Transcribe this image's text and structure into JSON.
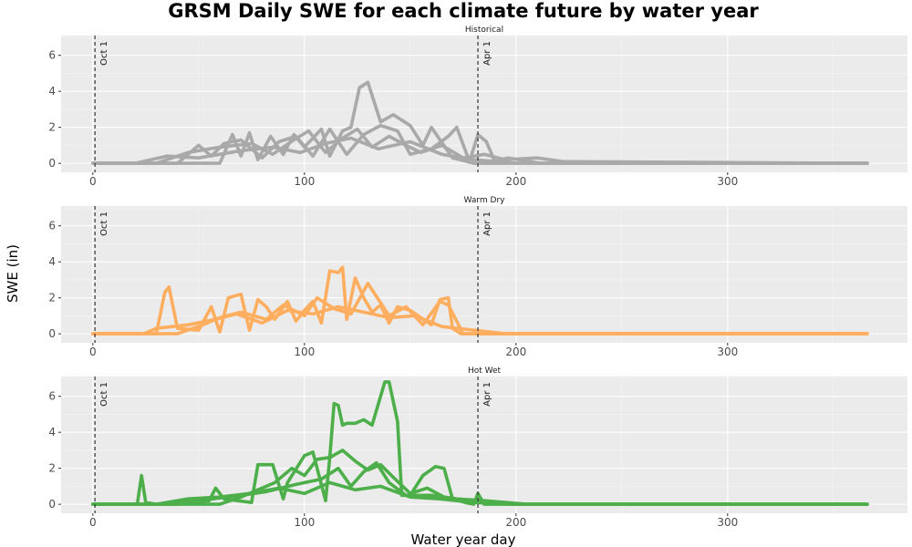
{
  "chart_data": {
    "type": "line",
    "title": "GRSM Daily SWE for each climate future by water year",
    "xlabel": "Water year day",
    "ylabel": "SWE (in)",
    "xlim": [
      -15,
      385
    ],
    "ylim": [
      -0.5,
      7.1
    ],
    "x_ticks": [
      0,
      100,
      200,
      300
    ],
    "y_ticks": [
      0,
      2,
      4,
      6
    ],
    "grid": true,
    "reference_lines": [
      {
        "x": 1,
        "label": "Oct 1",
        "style": "dashed"
      },
      {
        "x": 182,
        "label": "Apr 1",
        "style": "dashed"
      }
    ],
    "panels": [
      {
        "label": "Historical",
        "color": "#A9A9A9",
        "series": [
          {
            "x": [
              0,
              60,
              66,
              70,
              74,
              78,
              84,
              90,
              95,
              100,
              108,
              112,
              118,
              122,
              126,
              130,
              136,
              142,
              150,
              156,
              160,
              170,
              180,
              200,
              220,
              366
            ],
            "values": [
              0,
              0,
              1.6,
              0.4,
              1.7,
              0.2,
              1.5,
              0.5,
              1.6,
              0.9,
              1.9,
              0.4,
              1.8,
              2.0,
              4.2,
              4.5,
              2.3,
              2.7,
              2.1,
              1.0,
              2.0,
              0.3,
              0,
              0,
              0,
              0
            ]
          },
          {
            "x": [
              0,
              40,
              50,
              56,
              62,
              70,
              80,
              88,
              96,
              104,
              112,
              120,
              128,
              136,
              144,
              150,
              160,
              168,
              172,
              178,
              182,
              186,
              190,
              196,
              212,
              366
            ],
            "values": [
              0,
              0,
              1.0,
              0.4,
              1.1,
              1.3,
              0.3,
              1.2,
              1.5,
              0.4,
              1.9,
              0.5,
              1.6,
              2.1,
              1.8,
              0.5,
              0.8,
              1.5,
              2.0,
              0.1,
              1.6,
              1.2,
              0.1,
              0.3,
              0,
              0
            ]
          },
          {
            "x": [
              0,
              30,
              45,
              60,
              75,
              85,
              95,
              102,
              110,
              118,
              125,
              132,
              140,
              148,
              155,
              165,
              175,
              185,
              195,
              210,
              222,
              366
            ],
            "values": [
              0,
              0,
              0.6,
              0.9,
              1.1,
              0.5,
              1.3,
              1.8,
              0.6,
              1.4,
              1.9,
              0.9,
              1.5,
              1.0,
              0.6,
              1.0,
              0.3,
              0.5,
              0.2,
              0.3,
              0.1,
              0
            ]
          },
          {
            "x": [
              0,
              20,
              35,
              50,
              70,
              85,
              98,
              110,
              122,
              135,
              150,
              165,
              180,
              200,
              366
            ],
            "values": [
              0,
              0,
              0.4,
              0.3,
              0.7,
              0.9,
              0.6,
              1.1,
              1.4,
              0.8,
              1.2,
              0.5,
              0.2,
              0,
              0
            ]
          }
        ]
      },
      {
        "label": "Warm Dry",
        "color": "#FFAE5F",
        "series": [
          {
            "x": [
              0,
              30,
              34,
              36,
              40,
              50,
              56,
              60,
              64,
              70,
              74,
              78,
              82,
              86,
              92,
              96,
              100,
              104,
              108,
              112,
              116,
              118,
              120,
              124,
              128,
              132,
              136,
              140,
              144,
              150,
              160,
              164,
              168,
              170,
              174,
              182,
              200,
              366
            ],
            "values": [
              0,
              0,
              2.3,
              2.6,
              0.3,
              0.2,
              1.5,
              0.1,
              2.0,
              2.2,
              0.2,
              1.9,
              1.5,
              0.8,
              1.8,
              0.7,
              1.3,
              1.8,
              0.6,
              3.5,
              3.4,
              3.7,
              0.8,
              3.1,
              2.0,
              1.2,
              1.6,
              0.6,
              1.5,
              1.3,
              0.5,
              1.9,
              2.0,
              0.3,
              0,
              0,
              0,
              0
            ]
          },
          {
            "x": [
              0,
              40,
              52,
              60,
              70,
              82,
              90,
              100,
              106,
              114,
              122,
              130,
              140,
              148,
              156,
              164,
              168,
              175,
              190,
              366
            ],
            "values": [
              0,
              0,
              0.5,
              0.9,
              1.2,
              0.8,
              1.6,
              1.0,
              2.0,
              1.4,
              1.1,
              2.8,
              1.0,
              1.5,
              0.5,
              1.8,
              1.6,
              0,
              0,
              0
            ]
          },
          {
            "x": [
              0,
              24,
              30,
              45,
              58,
              68,
              80,
              92,
              104,
              116,
              128,
              140,
              152,
              165,
              180,
              195,
              366
            ],
            "values": [
              0,
              0,
              0.3,
              0.5,
              0.8,
              1.1,
              0.6,
              1.3,
              1.1,
              1.5,
              1.2,
              0.9,
              1.0,
              0.4,
              0.2,
              0,
              0
            ]
          }
        ]
      },
      {
        "label": "Hot Wet",
        "color": "#4DAF4A",
        "series": [
          {
            "x": [
              0,
              21,
              23,
              25,
              30,
              55,
              58,
              62,
              75,
              78,
              85,
              90,
              92,
              100,
              104,
              110,
              112,
              114,
              116,
              118,
              120,
              124,
              128,
              132,
              138,
              140,
              144,
              146,
              150,
              156,
              162,
              166,
              170,
              176,
              180,
              182,
              185,
              200,
              366
            ],
            "values": [
              0,
              0,
              1.6,
              0.1,
              0,
              0.2,
              0.9,
              0.3,
              0.1,
              2.2,
              2.2,
              0.3,
              1.2,
              2.7,
              2.9,
              0.2,
              2.6,
              5.6,
              5.5,
              4.4,
              4.5,
              4.5,
              4.7,
              4.4,
              6.8,
              6.8,
              4.6,
              0.5,
              0.5,
              1.6,
              2.1,
              2.0,
              0.3,
              0.1,
              0,
              0.6,
              0,
              0,
              0
            ]
          },
          {
            "x": [
              0,
              60,
              70,
              78,
              86,
              94,
              100,
              106,
              112,
              118,
              124,
              130,
              136,
              142,
              150,
              158,
              166,
              175,
              190,
              200,
              366
            ],
            "values": [
              0,
              0,
              0.4,
              0.8,
              1.2,
              2.0,
              1.6,
              2.5,
              2.6,
              3.0,
              2.4,
              1.9,
              2.2,
              1.5,
              0.6,
              0.9,
              0.4,
              0.2,
              0.1,
              0,
              0
            ]
          },
          {
            "x": [
              0,
              40,
              50,
              70,
              82,
              96,
              108,
              116,
              122,
              128,
              134,
              140,
              148,
              160,
              172,
              185,
              205,
              366
            ],
            "values": [
              0,
              0,
              0.2,
              0.5,
              0.7,
              1.1,
              1.4,
              2.0,
              1.0,
              1.8,
              2.3,
              1.2,
              0.5,
              0.5,
              0.3,
              0.2,
              0,
              0
            ]
          },
          {
            "x": [
              0,
              30,
              45,
              60,
              74,
              88,
              100,
              112,
              124,
              136,
              150,
              164,
              180,
              198,
              366
            ],
            "values": [
              0,
              0,
              0.3,
              0.4,
              0.6,
              0.9,
              0.6,
              1.2,
              0.8,
              1.0,
              0.4,
              0.3,
              0.1,
              0,
              0
            ]
          }
        ]
      }
    ]
  }
}
